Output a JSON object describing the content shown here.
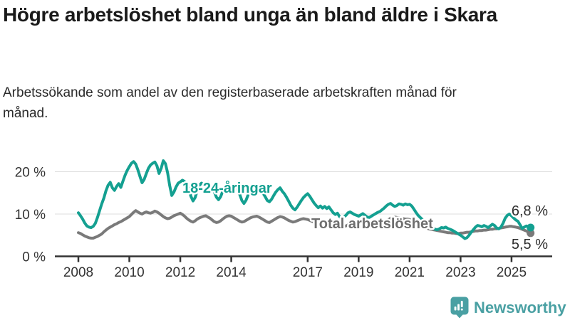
{
  "header": {
    "title": "Högre arbetslöshet bland unga än bland äldre i Skara",
    "subtitle": "Arbetssökande som andel av den registerbaserade arbetskraften månad för månad."
  },
  "chart_data": {
    "type": "line",
    "title": "Högre arbetslöshet bland unga än bland äldre i Skara",
    "subtitle": "Arbetssökande som andel av den registerbaserade arbetskraften månad för månad.",
    "frequency": "monthly",
    "x_start": "2008-01",
    "x_end": "2025-10",
    "xlim": [
      2008,
      2026.2
    ],
    "ylim": [
      0,
      25
    ],
    "grid": true,
    "legend_position": "direct-labels-on-lines",
    "y_ticks": [
      {
        "value": 0,
        "label": "0 %"
      },
      {
        "value": 10,
        "label": "10 %"
      },
      {
        "value": 20,
        "label": "20 %"
      }
    ],
    "x_ticks": [
      {
        "year": 2008,
        "label": "2008"
      },
      {
        "year": 2010,
        "label": "2010"
      },
      {
        "year": 2012,
        "label": "2012"
      },
      {
        "year": 2014,
        "label": "2014"
      },
      {
        "year": 2017,
        "label": "2017"
      },
      {
        "year": 2019,
        "label": "2019"
      },
      {
        "year": 2021,
        "label": "2021"
      },
      {
        "year": 2023,
        "label": "2023"
      },
      {
        "year": 2025,
        "label": "2025"
      }
    ],
    "series": [
      {
        "name": "18-24-åringar",
        "color": "#14A091",
        "end_label": "6,8 %",
        "end_value": 6.8,
        "values": [
          10.3,
          9.6,
          8.8,
          7.9,
          7.2,
          6.9,
          6.8,
          7.1,
          7.8,
          9.2,
          10.8,
          12.4,
          13.8,
          15.5,
          16.8,
          17.5,
          16.2,
          15.6,
          16.5,
          17.2,
          16.3,
          17.8,
          19.2,
          20.3,
          21.2,
          22.0,
          22.4,
          21.8,
          20.5,
          18.9,
          17.4,
          18.2,
          19.6,
          20.8,
          21.6,
          22.0,
          22.3,
          21.4,
          19.6,
          20.8,
          22.6,
          21.9,
          19.8,
          16.8,
          14.4,
          15.2,
          16.4,
          17.3,
          17.6,
          18.0,
          17.7,
          17.2,
          16.1,
          14.2,
          13.1,
          13.9,
          15.6,
          16.8,
          17.3,
          17.0,
          17.2,
          17.5,
          16.9,
          16.2,
          15.3,
          14.0,
          13.4,
          14.1,
          15.4,
          16.3,
          16.8,
          16.5,
          16.7,
          16.9,
          16.4,
          15.7,
          14.6,
          13.2,
          12.5,
          13.3,
          14.6,
          15.6,
          16.1,
          15.9,
          15.7,
          15.9,
          15.5,
          14.9,
          14.1,
          13.2,
          12.9,
          13.5,
          14.4,
          15.2,
          15.8,
          16.2,
          15.4,
          14.8,
          14.0,
          13.1,
          12.1,
          11.4,
          11.0,
          11.6,
          12.4,
          13.2,
          13.9,
          14.4,
          14.8,
          14.2,
          13.4,
          12.6,
          12.0,
          11.5,
          11.9,
          11.4,
          11.8,
          11.3,
          11.7,
          11.0,
          10.3,
          9.9,
          10.2,
          9.4,
          9.0,
          9.3,
          9.7,
          10.3,
          10.5,
          10.2,
          9.9,
          9.7,
          9.5,
          9.8,
          10.1,
          9.7,
          9.3,
          9.2,
          9.5,
          9.8,
          10.1,
          10.4,
          10.6,
          11.0,
          11.4,
          11.9,
          12.3,
          12.5,
          12.1,
          11.8,
          12.0,
          12.4,
          12.3,
          12.1,
          12.4,
          12.2,
          12.3,
          11.9,
          11.2,
          10.4,
          9.7,
          9.2,
          8.7,
          8.2,
          7.8,
          7.4,
          7.0,
          6.7,
          6.4,
          6.3,
          6.5,
          6.8,
          6.7,
          6.9,
          6.6,
          6.4,
          6.2,
          5.9,
          5.6,
          5.3,
          5.0,
          4.6,
          4.2,
          4.4,
          5.0,
          5.7,
          6.3,
          6.9,
          7.3,
          7.2,
          7.0,
          7.3,
          7.1,
          6.8,
          7.2,
          7.6,
          7.3,
          6.7,
          6.5,
          6.9,
          7.8,
          9.0,
          9.7,
          10.0,
          9.6,
          9.1,
          8.6,
          8.3,
          7.5,
          6.6,
          6.9,
          7.2,
          7.0,
          6.8
        ]
      },
      {
        "name": "Total arbetslöshet",
        "color": "#7A7A7A",
        "end_label": "5,5 %",
        "end_value": 5.5,
        "values": [
          5.6,
          5.4,
          5.1,
          4.8,
          4.6,
          4.4,
          4.3,
          4.3,
          4.5,
          4.7,
          5.0,
          5.3,
          5.8,
          6.2,
          6.6,
          6.9,
          7.2,
          7.5,
          7.7,
          8.0,
          8.2,
          8.5,
          8.8,
          9.1,
          9.4,
          9.9,
          10.4,
          10.8,
          10.5,
          10.2,
          10.0,
          10.3,
          10.5,
          10.3,
          10.2,
          10.4,
          10.7,
          10.5,
          10.2,
          9.8,
          9.4,
          9.1,
          8.9,
          9.0,
          9.3,
          9.6,
          9.8,
          10.0,
          10.2,
          9.9,
          9.5,
          9.0,
          8.6,
          8.3,
          8.1,
          8.4,
          8.8,
          9.1,
          9.3,
          9.5,
          9.6,
          9.3,
          9.0,
          8.6,
          8.2,
          8.0,
          8.1,
          8.4,
          8.8,
          9.2,
          9.5,
          9.6,
          9.5,
          9.2,
          8.9,
          8.6,
          8.3,
          8.1,
          8.2,
          8.5,
          8.8,
          9.1,
          9.3,
          9.4,
          9.5,
          9.3,
          9.0,
          8.7,
          8.4,
          8.1,
          8.0,
          8.3,
          8.6,
          8.9,
          9.2,
          9.4,
          9.3,
          9.1,
          8.8,
          8.5,
          8.3,
          8.1,
          8.2,
          8.4,
          8.6,
          8.8,
          8.9,
          8.8,
          8.7,
          8.5,
          8.3,
          8.1,
          7.9,
          7.7,
          7.8,
          8.0,
          8.2,
          8.3,
          8.2,
          8.1,
          7.9,
          7.7,
          7.5,
          7.3,
          7.2,
          7.1,
          7.2,
          7.4,
          7.5,
          7.4,
          7.3,
          7.2,
          7.1,
          7.0,
          6.9,
          6.8,
          6.8,
          6.9,
          7.0,
          7.2,
          7.3,
          7.4,
          7.5,
          7.7,
          7.9,
          8.2,
          8.6,
          9.0,
          9.2,
          9.3,
          9.2,
          9.1,
          9.0,
          8.9,
          8.8,
          8.8,
          8.7,
          8.5,
          8.2,
          7.9,
          7.6,
          7.3,
          7.1,
          6.9,
          6.7,
          6.5,
          6.4,
          6.3,
          6.2,
          6.1,
          6.0,
          5.9,
          5.8,
          5.7,
          5.6,
          5.6,
          5.5,
          5.5,
          5.4,
          5.4,
          5.5,
          5.5,
          5.6,
          5.7,
          5.7,
          5.8,
          5.9,
          6.0,
          6.0,
          6.1,
          6.1,
          6.2,
          6.2,
          6.3,
          6.4,
          6.4,
          6.5,
          6.5,
          6.6,
          6.7,
          6.8,
          6.9,
          7.0,
          7.1,
          7.1,
          7.0,
          6.9,
          6.8,
          6.6,
          6.4,
          6.2,
          6.0,
          5.7,
          5.5
        ]
      }
    ]
  },
  "branding": {
    "logo_text": "Newsworthy",
    "logo_color": "#4AA0A3",
    "logo_icon": "bar-chart-speech-bubble-icon"
  }
}
